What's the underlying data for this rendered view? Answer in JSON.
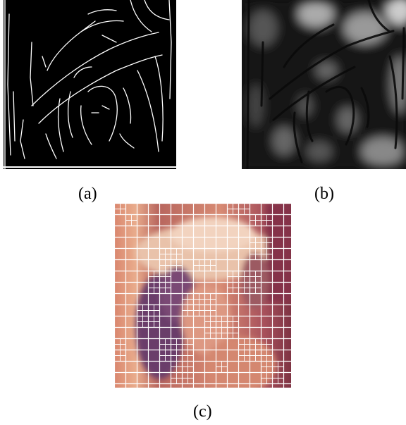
{
  "figure": {
    "panels": [
      {
        "id": "a",
        "caption": "(a)",
        "content": "edge-map"
      },
      {
        "id": "b",
        "caption": "(b)",
        "content": "distance-transform"
      },
      {
        "id": "c",
        "caption": "(c)",
        "content": "quadtree-overlay"
      }
    ],
    "colors": {
      "background": "#ffffff",
      "edge": "#ffffff",
      "edge_map_bg": "#000000",
      "grid": "#ffffff"
    }
  }
}
